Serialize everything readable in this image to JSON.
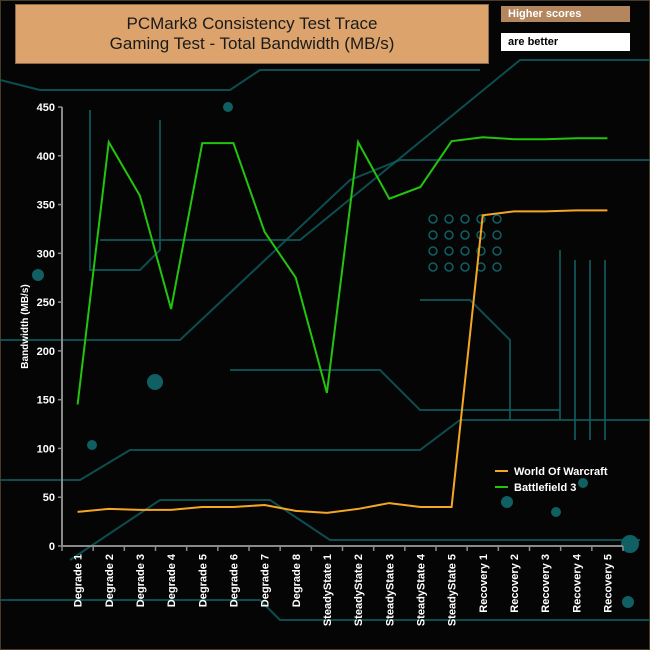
{
  "header": {
    "title_line1": "PCMark8 Consistency Test Trace",
    "title_line2": "Gaming Test - Total Bandwidth (MB/s)",
    "badge_top": "Higher scores",
    "badge_bottom": "are better"
  },
  "colors": {
    "background": "#050505",
    "circuit": "#0f5f63",
    "title_bg": "#dca46c",
    "world_of_warcraft": "#f5a623",
    "battlefield_3": "#22c40e",
    "axis": "#8a8a8a"
  },
  "chart_data": {
    "type": "line",
    "title": "PCMark8 Consistency Test Trace\nGaming Test - Total Bandwidth (MB/s)",
    "xlabel": "",
    "ylabel": "Bandwidth (MB/s)",
    "ylim": [
      0,
      450
    ],
    "yticks": [
      0,
      50,
      100,
      150,
      200,
      250,
      300,
      350,
      400,
      450
    ],
    "grid": false,
    "legend_position": "bottom-right",
    "categories": [
      "Degrade 1",
      "Degrade 2",
      "Degrade 3",
      "Degrade 4",
      "Degrade 5",
      "Degrade 6",
      "Degrade 7",
      "Degrade 8",
      "SteadyState 1",
      "SteadyState 2",
      "SteadyState 3",
      "SteadyState 4",
      "SteadyState 5",
      "Recovery 1",
      "Recovery 2",
      "Recovery 3",
      "Recovery 4",
      "Recovery 5"
    ],
    "series": [
      {
        "name": "World Of Warcraft",
        "color": "#f5a623",
        "values": [
          35,
          38,
          37,
          37,
          40,
          40,
          42,
          36,
          34,
          38,
          44,
          40,
          40,
          339,
          343,
          343,
          344,
          344
        ]
      },
      {
        "name": "Battlefield 3",
        "color": "#22c40e",
        "values": [
          145,
          414,
          359,
          243,
          413,
          413,
          322,
          275,
          157,
          414,
          356,
          368,
          415,
          419,
          417,
          417,
          418,
          418
        ]
      }
    ]
  }
}
